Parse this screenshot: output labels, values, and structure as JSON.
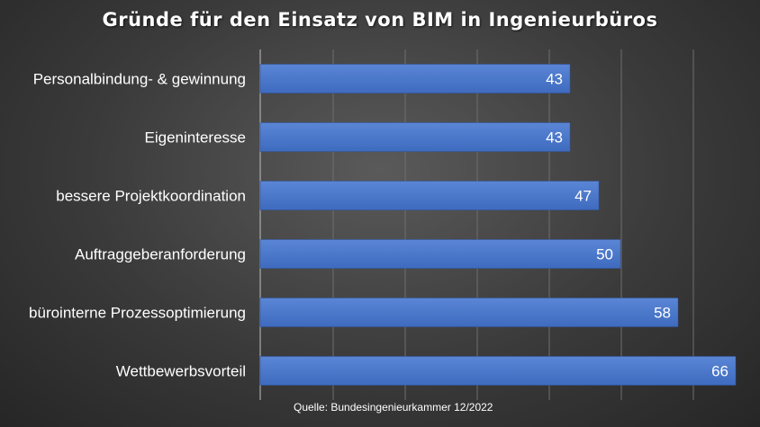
{
  "chart_data": {
    "type": "bar",
    "orientation": "horizontal",
    "title": "Gründe für den Einsatz von BIM in Ingenieurbüros",
    "categories": [
      "Personalbindung- & gewinnung",
      "Eigeninteresse",
      "bessere Projektkoordination",
      "Auftraggeberanforderung",
      "bürointerne Prozessoptimierung",
      "Wettbewerbsvorteil"
    ],
    "values": [
      43,
      43,
      47,
      50,
      58,
      66
    ],
    "xlim": [
      0,
      66
    ],
    "grid": true,
    "legend": "none",
    "colors": {
      "bar": "#4472c4",
      "bar_light": "#5b86d6",
      "grid": "#6e6e6e",
      "axis": "#bfbfbf",
      "text": "#ffffff"
    },
    "source": "Quelle:  Bundesingenieurkammer  12/2022"
  }
}
